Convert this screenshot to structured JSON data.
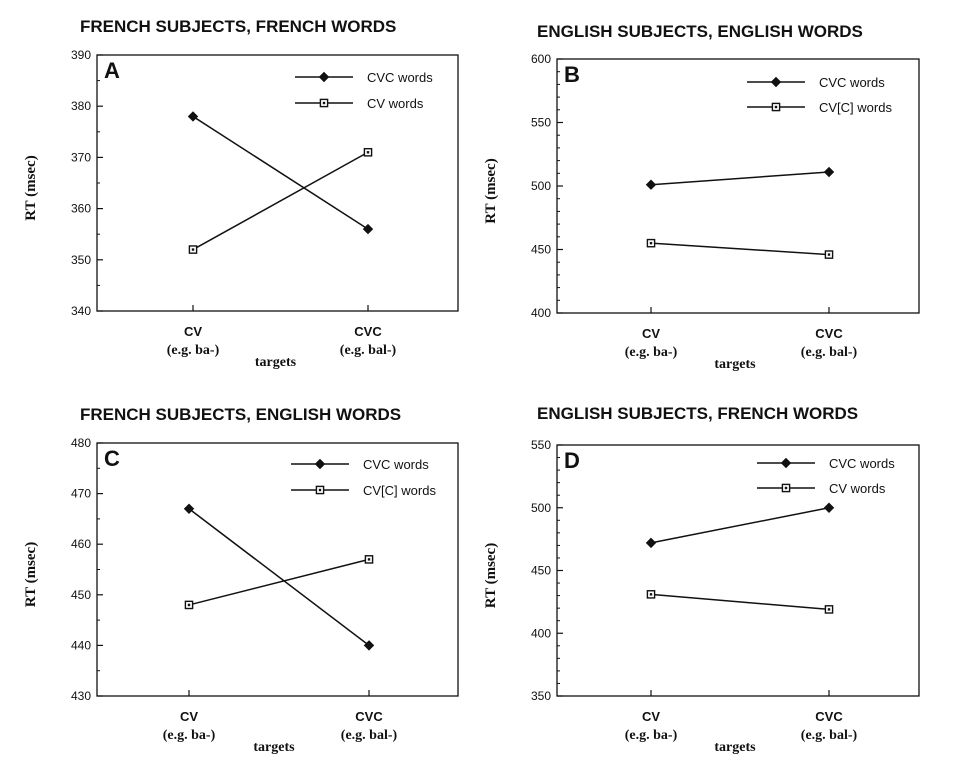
{
  "chart_data": [
    {
      "id": "A",
      "type": "line",
      "panel_letter": "A",
      "title": "FRENCH SUBJECTS,  FRENCH WORDS",
      "xlabel": "targets",
      "ylabel": "RT  (msec)",
      "categories": [
        {
          "line1": "CV",
          "line2": "(e.g. ba-)"
        },
        {
          "line1": "CVC",
          "line2": "(e.g. bal-)"
        }
      ],
      "ylim": [
        340,
        390
      ],
      "yticks": [
        340,
        350,
        360,
        370,
        380,
        390
      ],
      "series": [
        {
          "name": "CVC words",
          "marker": "diamond-filled",
          "values": [
            378,
            356
          ]
        },
        {
          "name": "CV words",
          "marker": "square-open",
          "values": [
            352,
            371
          ]
        }
      ]
    },
    {
      "id": "B",
      "type": "line",
      "panel_letter": "B",
      "title": "ENGLISH SUBJECTS, ENGLISH WORDS",
      "xlabel": "targets",
      "ylabel": "RT  (msec)",
      "categories": [
        {
          "line1": "CV",
          "line2": "(e.g. ba-)"
        },
        {
          "line1": "CVC",
          "line2": "(e.g. bal-)"
        }
      ],
      "ylim": [
        400,
        600
      ],
      "yticks": [
        400,
        450,
        500,
        550,
        600
      ],
      "series": [
        {
          "name": "CVC words",
          "marker": "diamond-filled",
          "values": [
            501,
            511
          ]
        },
        {
          "name": "CV[C] words",
          "marker": "square-open",
          "values": [
            455,
            446
          ]
        }
      ]
    },
    {
      "id": "C",
      "type": "line",
      "panel_letter": "C",
      "title": "FRENCH SUBJECTS, ENGLISH WORDS",
      "xlabel": "targets",
      "ylabel": "RT  (msec)",
      "categories": [
        {
          "line1": "CV",
          "line2": "(e.g. ba-)"
        },
        {
          "line1": "CVC",
          "line2": "(e.g. bal-)"
        }
      ],
      "ylim": [
        430,
        480
      ],
      "yticks": [
        430,
        440,
        450,
        460,
        470,
        480
      ],
      "series": [
        {
          "name": "CVC words",
          "marker": "diamond-filled",
          "values": [
            467,
            440
          ]
        },
        {
          "name": "CV[C] words",
          "marker": "square-open",
          "values": [
            448,
            457
          ]
        }
      ]
    },
    {
      "id": "D",
      "type": "line",
      "panel_letter": "D",
      "title": "ENGLISH SUBJECTS, FRENCH WORDS",
      "xlabel": "targets",
      "ylabel": "RT  (msec)",
      "categories": [
        {
          "line1": "CV",
          "line2": "(e.g. ba-)"
        },
        {
          "line1": "CVC",
          "line2": "(e.g. bal-)"
        }
      ],
      "ylim": [
        350,
        550
      ],
      "yticks": [
        350,
        400,
        450,
        500,
        550
      ],
      "series": [
        {
          "name": "CVC words",
          "marker": "diamond-filled",
          "values": [
            472,
            500
          ]
        },
        {
          "name": "CV words",
          "marker": "square-open",
          "values": [
            431,
            419
          ]
        }
      ]
    }
  ]
}
